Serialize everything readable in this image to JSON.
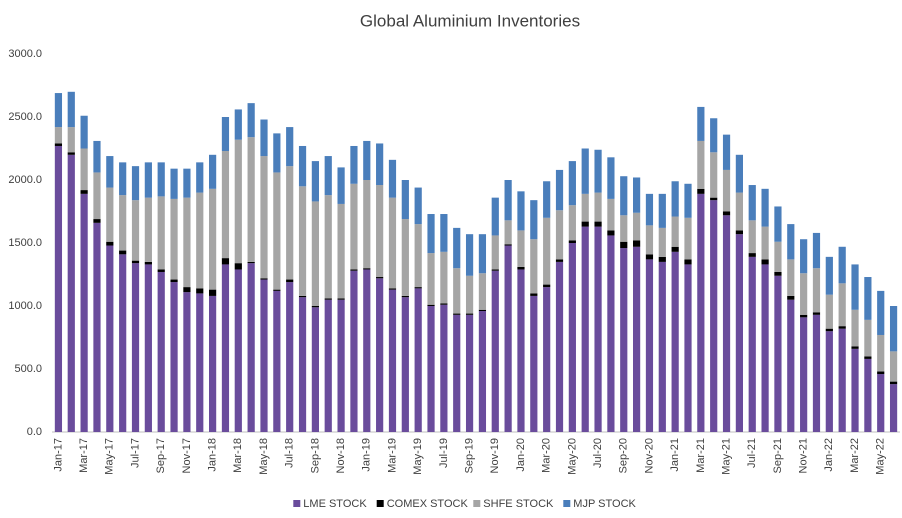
{
  "chart_data": {
    "type": "stacked_bar",
    "title": "Global Aluminium Inventories",
    "categories": [
      "Jan-17",
      null,
      "Mar-17",
      null,
      "May-17",
      null,
      "Jul-17",
      null,
      "Sep-17",
      null,
      "Nov-17",
      null,
      "Jan-18",
      null,
      "Mar-18",
      null,
      "May-18",
      null,
      "Jul-18",
      null,
      "Sep-18",
      null,
      "Nov-18",
      null,
      "Jan-19",
      null,
      "Mar-19",
      null,
      "May-19",
      null,
      "Jul-19",
      null,
      "Sep-19",
      null,
      "Nov-19",
      null,
      "Jan-20",
      null,
      "Mar-20",
      null,
      "May-20",
      null,
      "Jul-20",
      null,
      "Sep-20",
      null,
      "Nov-20",
      null,
      "Jan-21",
      null,
      "Mar-21",
      null,
      "May-21",
      null,
      "Jul-21",
      null,
      "Sep-21",
      null,
      "Nov-21",
      null,
      "Jan-22",
      null,
      "Mar-22",
      null,
      "May-22",
      null
    ],
    "series": [
      {
        "name": "LME STOCK",
        "color": "#6a4c9c",
        "values": [
          2270,
          2200,
          1890,
          1660,
          1480,
          1410,
          1340,
          1330,
          1270,
          1190,
          1110,
          1100,
          1080,
          1330,
          1290,
          1340,
          1210,
          1120,
          1190,
          1070,
          990,
          1050,
          1050,
          1280,
          1290,
          1220,
          1130,
          1070,
          1140,
          1000,
          1010,
          930,
          930,
          960,
          1280,
          1480,
          1290,
          1080,
          1150,
          1350,
          1500,
          1630,
          1630,
          1560,
          1460,
          1470,
          1370,
          1350,
          1430,
          1330,
          1890,
          1840,
          1720,
          1570,
          1390,
          1330,
          1240,
          1050,
          910,
          930,
          800,
          820,
          660,
          580,
          460,
          380
        ]
      },
      {
        "name": "COMEX STOCK",
        "color": "#000000",
        "values": [
          20,
          20,
          30,
          30,
          30,
          30,
          20,
          20,
          20,
          20,
          40,
          40,
          50,
          50,
          50,
          10,
          10,
          10,
          20,
          10,
          10,
          10,
          10,
          10,
          10,
          10,
          10,
          10,
          10,
          10,
          10,
          10,
          10,
          10,
          10,
          10,
          20,
          20,
          20,
          20,
          20,
          40,
          40,
          40,
          50,
          50,
          40,
          40,
          40,
          40,
          40,
          20,
          30,
          30,
          30,
          40,
          30,
          30,
          20,
          20,
          20,
          20,
          20,
          20,
          20,
          20
        ]
      },
      {
        "name": "SHFE STOCK",
        "color": "#a5a5a5",
        "values": [
          130,
          200,
          330,
          370,
          430,
          440,
          480,
          510,
          580,
          640,
          710,
          760,
          800,
          850,
          980,
          990,
          970,
          930,
          900,
          870,
          830,
          820,
          750,
          680,
          700,
          730,
          720,
          610,
          500,
          410,
          410,
          360,
          300,
          290,
          270,
          190,
          290,
          430,
          530,
          390,
          280,
          220,
          230,
          250,
          210,
          220,
          230,
          230,
          240,
          330,
          380,
          360,
          330,
          300,
          260,
          260,
          240,
          290,
          330,
          350,
          270,
          340,
          290,
          290,
          290,
          240
        ]
      },
      {
        "name": "MJP STOCK",
        "color": "#4a7ebb",
        "values": [
          270,
          280,
          260,
          250,
          250,
          260,
          270,
          280,
          270,
          240,
          230,
          240,
          270,
          270,
          240,
          270,
          290,
          310,
          310,
          320,
          320,
          310,
          290,
          300,
          310,
          330,
          300,
          310,
          290,
          310,
          300,
          320,
          330,
          310,
          300,
          320,
          310,
          310,
          290,
          320,
          350,
          360,
          340,
          330,
          310,
          280,
          250,
          270,
          280,
          270,
          270,
          270,
          280,
          300,
          280,
          300,
          280,
          280,
          270,
          280,
          300,
          290,
          360,
          340,
          350,
          360
        ]
      }
    ],
    "ylim": [
      0,
      3000
    ],
    "yticks": [
      {
        "value": 0,
        "label": "0.0"
      },
      {
        "value": 500,
        "label": "500.0"
      },
      {
        "value": 1000,
        "label": "1000.0"
      },
      {
        "value": 1500,
        "label": "1500.0"
      },
      {
        "value": 2000,
        "label": "2000.0"
      },
      {
        "value": 2500,
        "label": "2500.0"
      },
      {
        "value": 3000,
        "label": "3000.0"
      }
    ],
    "grid": false,
    "legend": "bottom"
  }
}
